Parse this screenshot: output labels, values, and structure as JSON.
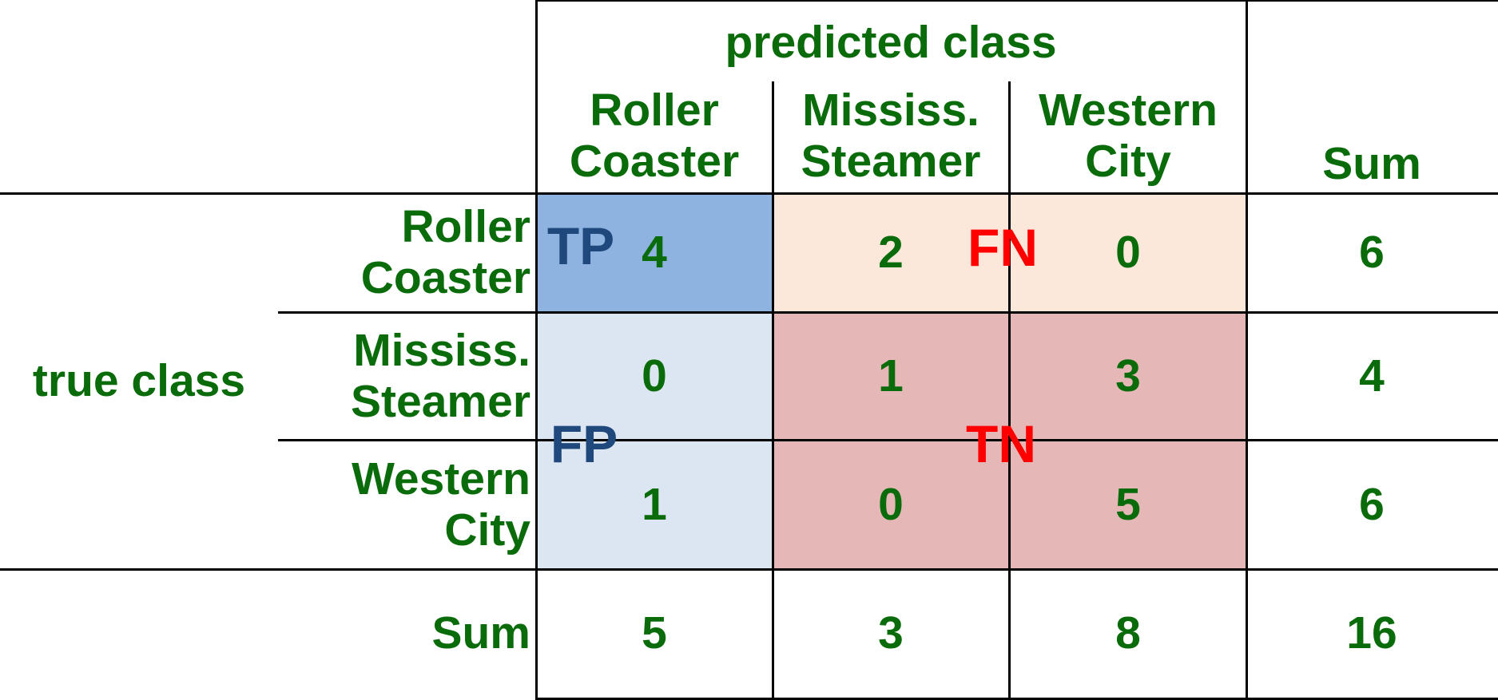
{
  "axes": {
    "predicted_label": "predicted class",
    "true_label": "true class"
  },
  "columns": [
    "Roller\nCoaster",
    "Mississ.\nSteamer",
    "Western\nCity"
  ],
  "rows": [
    "Roller\nCoaster",
    "Mississ.\nSteamer",
    "Western\nCity"
  ],
  "sum_label": "Sum",
  "matrix": [
    [
      4,
      2,
      0
    ],
    [
      0,
      1,
      3
    ],
    [
      1,
      0,
      5
    ]
  ],
  "row_sums": [
    6,
    4,
    6
  ],
  "col_sums": [
    5,
    3,
    8
  ],
  "total": 16,
  "regions": {
    "tp": "TP",
    "fn": "FN",
    "fp": "FP",
    "tn": "TN"
  },
  "colors": {
    "text_green": "#0a6b0a",
    "tp_fill": "#8fb3e0",
    "fp_fill": "#dce6f2",
    "fn_fill": "#fce8da",
    "tn_fill": "#e5b8b7",
    "tp_fp_label": "#1f497d",
    "fn_tn_label": "#ff0000"
  }
}
